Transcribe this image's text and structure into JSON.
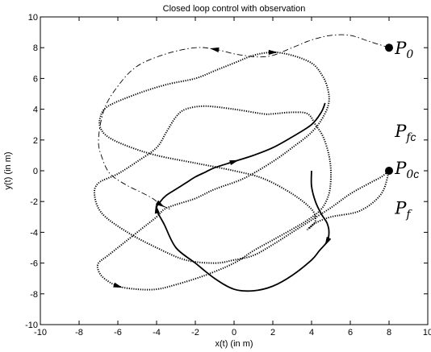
{
  "chart_data": {
    "type": "line",
    "title": "Closed loop control with observation",
    "xlabel": "x(t) (in m)",
    "ylabel": "y(t) (in m)",
    "xlim": [
      -10,
      10
    ],
    "ylim": [
      -10,
      10
    ],
    "xticks": [
      "-10",
      "-8",
      "-6",
      "-4",
      "-2",
      "0",
      "2",
      "4",
      "6",
      "8",
      "10"
    ],
    "yticks": [
      "-10",
      "-8",
      "-6",
      "-4",
      "-2",
      "0",
      "2",
      "4",
      "6",
      "8",
      "10"
    ],
    "grid": false,
    "colors": {
      "line": "#000000",
      "background": "#ffffff"
    },
    "series": [
      {
        "style": "dotted",
        "x": [
          8,
          7.6,
          6.5,
          5.0,
          4.2,
          3.8,
          4.0,
          4.2,
          4.0,
          3.0,
          1.5,
          0.0,
          -2.0,
          -4.0,
          -5.5,
          -6.5,
          -6.9,
          -6.9,
          -6.5,
          -5.0,
          -3.5,
          -2.0,
          -1.0,
          0.0,
          1.0,
          2.0,
          3.0,
          4.0,
          4.5,
          4.8,
          4.9,
          4.6,
          4.0,
          3.0,
          2.0,
          0.5,
          -1.0,
          -2.0,
          -3.0,
          -3.6,
          -4.0,
          -4.8,
          -5.8,
          -6.5,
          -7.0,
          -7.0,
          -6.7,
          -6.0,
          -5.0,
          -4.0,
          -3.0,
          -1.5,
          0.0,
          1.0,
          2.0,
          3.0,
          3.8,
          4.5,
          4.9,
          5.0,
          4.9,
          4.6,
          4.2,
          3.8,
          3.0,
          2.0,
          1.5,
          0.0,
          -1.5,
          -2.5,
          -3.0,
          -3.5,
          -4.0,
          -5.0,
          -6.0,
          -7.0,
          -7.2,
          -6.8,
          -5.5,
          -4.0,
          -2.5,
          -1.0,
          0.0,
          1.0,
          2.0,
          3.0,
          4.0,
          5.0,
          6.0,
          7.0,
          7.6,
          8.0
        ],
        "y": [
          0,
          -1.5,
          -2.6,
          -3.0,
          -3.4,
          -3.8,
          -3.6,
          -3.2,
          -2.5,
          -1.5,
          -0.5,
          0.0,
          0.5,
          1.0,
          1.6,
          2.2,
          2.8,
          3.5,
          4.2,
          5.0,
          5.6,
          6.0,
          6.5,
          7.0,
          7.5,
          7.7,
          7.5,
          7.0,
          6.3,
          5.5,
          4.5,
          3.5,
          2.5,
          1.5,
          0.6,
          -0.5,
          -1.2,
          -1.8,
          -2.2,
          -2.5,
          -3.0,
          -3.8,
          -4.8,
          -5.5,
          -6.0,
          -6.5,
          -7.0,
          -7.5,
          -7.7,
          -7.7,
          -7.4,
          -6.8,
          -6.0,
          -5.2,
          -4.5,
          -3.8,
          -3.2,
          -2.5,
          -1.5,
          -0.2,
          1.0,
          2.2,
          3.0,
          3.7,
          3.8,
          3.7,
          3.7,
          4.0,
          4.2,
          4.0,
          3.5,
          2.5,
          1.5,
          0.6,
          -0.2,
          -0.8,
          -1.6,
          -2.8,
          -4.0,
          -5.0,
          -5.8,
          -6.0,
          -5.8,
          -5.5,
          -4.8,
          -4.0,
          -3.2,
          -2.4,
          -1.5,
          -0.8,
          -0.4,
          0
        ]
      },
      {
        "style": "solid",
        "x": [
          4.0,
          4.0,
          4.2,
          4.5,
          4.8,
          4.9,
          4.8,
          4.4,
          4.0,
          3.0,
          2.0,
          1.0,
          0.0,
          -1.0,
          -2.0,
          -3.0,
          -3.6,
          -4.0,
          -3.8,
          -3.5,
          -3.0,
          -2.5,
          -2.0,
          -1.5,
          -1.0,
          0.0,
          1.0,
          2.0,
          3.0,
          4.0,
          4.5,
          4.7
        ],
        "y": [
          0,
          -1.0,
          -2.0,
          -2.8,
          -3.4,
          -4.0,
          -4.6,
          -5.2,
          -5.8,
          -6.8,
          -7.5,
          -7.8,
          -7.7,
          -7.0,
          -6.0,
          -5.0,
          -3.5,
          -2.5,
          -2.0,
          -1.6,
          -1.2,
          -0.8,
          -0.4,
          -0.1,
          0.2,
          0.6,
          1.0,
          1.5,
          2.2,
          3.0,
          3.8,
          4.4
        ]
      },
      {
        "style": "dashdot",
        "x": [
          8.0,
          7.0,
          6.0,
          5.0,
          4.0,
          3.0,
          2.0,
          1.2,
          0.5,
          0.0,
          -1.0,
          -2.0,
          -3.5,
          -5.0,
          -6.0,
          -6.7,
          -7.0,
          -6.8,
          -6.4,
          -5.6,
          -4.8,
          -4.2,
          -3.8,
          -3.3
        ],
        "y": [
          8.0,
          8.4,
          8.8,
          8.8,
          8.5,
          8.0,
          7.5,
          7.4,
          7.5,
          7.6,
          7.9,
          8.0,
          7.6,
          6.8,
          5.5,
          4.0,
          2.0,
          0.8,
          -0.2,
          -0.9,
          -1.4,
          -1.8,
          -2.2,
          -2.5
        ]
      }
    ],
    "markers": [
      {
        "x": 8,
        "y": 8
      },
      {
        "x": 8,
        "y": 0
      }
    ],
    "annotations": [
      {
        "x": 8.3,
        "y": 7.6,
        "text": "P",
        "sub": "0",
        "sub_c": ""
      },
      {
        "x": 8.3,
        "y": 2.2,
        "text": "P",
        "sub": "f",
        "sub_c": "c"
      },
      {
        "x": 8.3,
        "y": -0.2,
        "text": "P",
        "sub": "0",
        "sub_c": "c"
      },
      {
        "x": 8.3,
        "y": -2.8,
        "text": "P",
        "sub": "f",
        "sub_c": ""
      }
    ]
  }
}
